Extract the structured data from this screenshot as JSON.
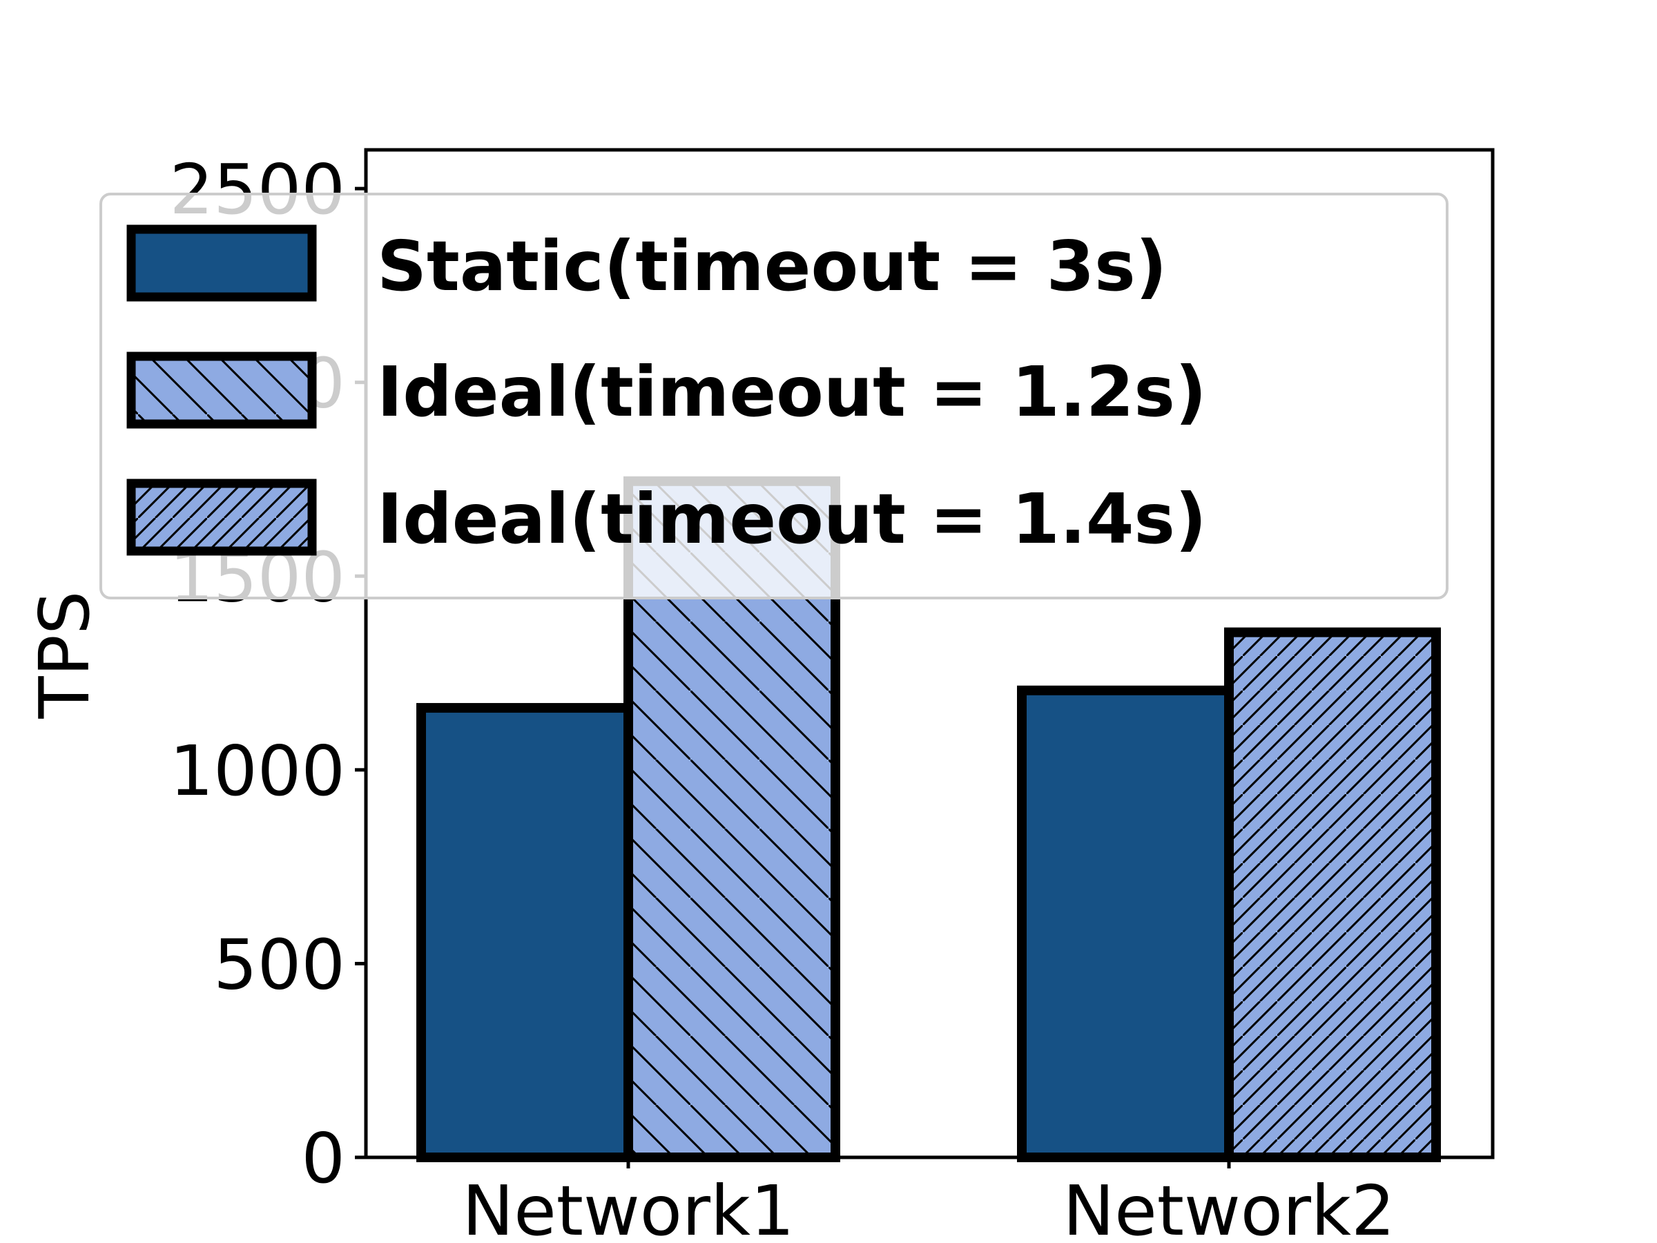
{
  "chart_data": {
    "type": "bar",
    "title": "",
    "xlabel": "",
    "ylabel": "TPS",
    "categories": [
      "Network1",
      "Network2"
    ],
    "ylim": [
      0,
      2600
    ],
    "yticks": [
      0,
      500,
      1000,
      1500,
      2000,
      2500
    ],
    "grid": false,
    "legend_position": "top",
    "series": [
      {
        "name": "Static(timeout = 3s)",
        "values": [
          1160,
          1205
        ],
        "color": "#165185",
        "hatch": "none"
      },
      {
        "name": "Ideal(timeout = 1.2s)",
        "values": [
          1745,
          0
        ],
        "color": "#8eaae2",
        "hatch": "backslash"
      },
      {
        "name": "Ideal(timeout = 1.4s)",
        "values": [
          0,
          1355
        ],
        "color": "#8eaae2",
        "hatch": "slash"
      }
    ]
  }
}
